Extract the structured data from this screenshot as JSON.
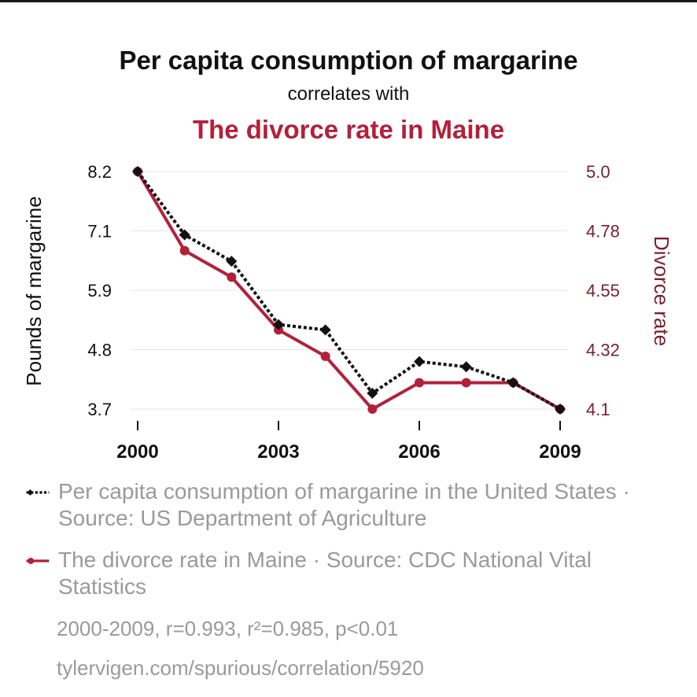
{
  "header": {
    "title": "Per capita consumption of margarine",
    "subtitle": "correlates with",
    "title2": "The divorce rate in Maine"
  },
  "colors": {
    "series1": "#111111",
    "series2": "#b3203a",
    "left_tick": "#111111",
    "right_tick": "#7a1f2c",
    "grid": "#e6e6e6",
    "muted_text": "#9a9a9a"
  },
  "chart_data": {
    "type": "line",
    "x": [
      2000,
      2001,
      2002,
      2003,
      2004,
      2005,
      2006,
      2007,
      2008,
      2009
    ],
    "x_ticks": [
      "2000",
      "2003",
      "2006",
      "2009"
    ],
    "xlim": [
      2000,
      2009
    ],
    "left_axis": {
      "label": "Pounds of margarine",
      "ticks": [
        "8.2",
        "7.1",
        "5.9",
        "4.8",
        "3.7"
      ],
      "ylim": [
        3.7,
        8.2
      ]
    },
    "right_axis": {
      "label": "Divorce rate",
      "ticks": [
        "5.0",
        "4.78",
        "4.55",
        "4.32",
        "4.1"
      ],
      "ylim": [
        4.1,
        5.0
      ]
    },
    "series": [
      {
        "name": "Per capita consumption of margarine in the United States",
        "axis": "left",
        "style": "dotted-diamond",
        "values": [
          8.2,
          7.0,
          6.5,
          5.3,
          5.2,
          4.0,
          4.6,
          4.5,
          4.2,
          3.7
        ]
      },
      {
        "name": "The divorce rate in Maine",
        "axis": "right",
        "style": "solid-circle",
        "values": [
          5.0,
          4.7,
          4.6,
          4.4,
          4.3,
          4.1,
          4.2,
          4.2,
          4.2,
          4.1
        ]
      }
    ]
  },
  "legend": {
    "item1": "Per capita consumption of margarine in the United States · Source: US Department of Agriculture",
    "item2": "The divorce rate in Maine · Source: CDC National Vital Statistics"
  },
  "footer": {
    "stats": "2000-2009, r=0.993, r²=0.985, p<0.01",
    "url": "tylervigen.com/spurious/correlation/5920"
  }
}
